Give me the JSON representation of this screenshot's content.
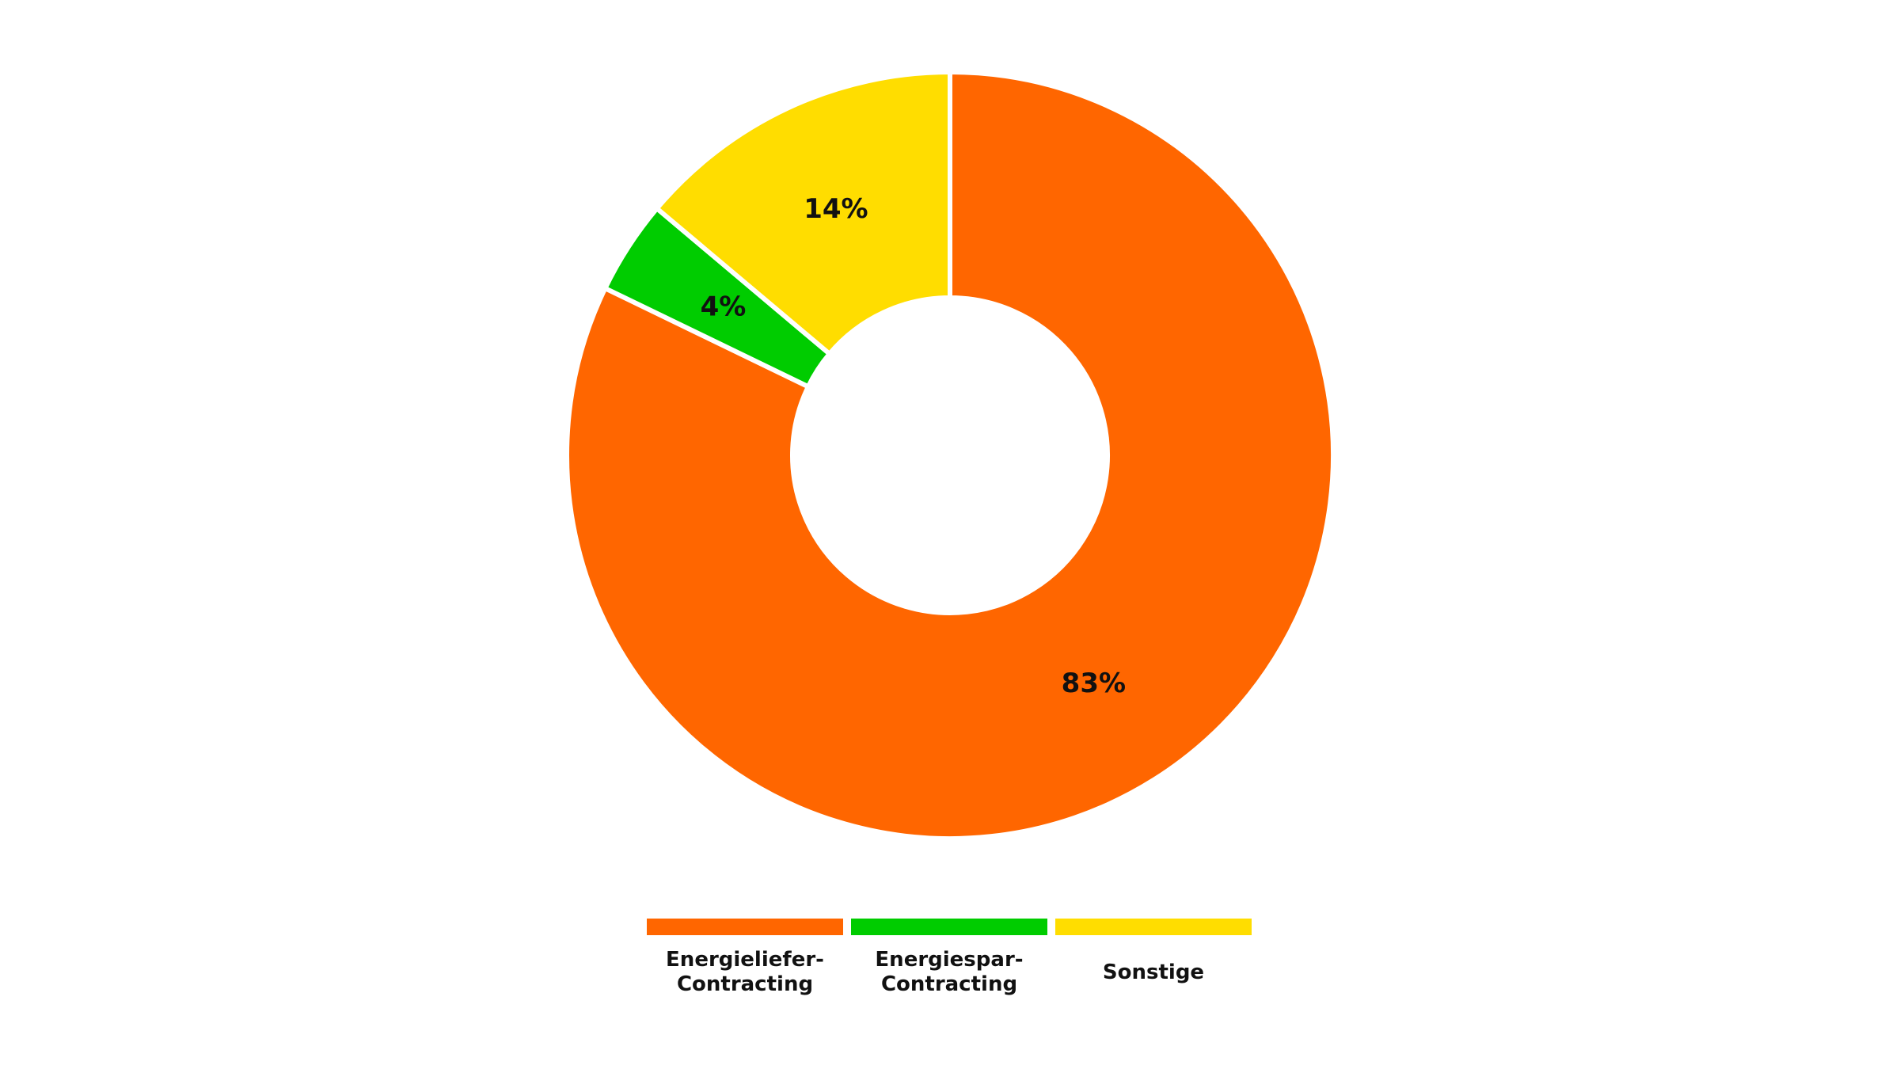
{
  "chart_data": {
    "type": "donut",
    "categories": [
      "Energieliefer-\nContracting",
      "Energiespar-\nContracting",
      "Sonstige"
    ],
    "values": [
      83,
      4,
      14
    ],
    "value_labels": [
      "83%",
      "4%",
      "14%"
    ],
    "colors": [
      "#ff6600",
      "#00cc00",
      "#ffdd00"
    ]
  }
}
